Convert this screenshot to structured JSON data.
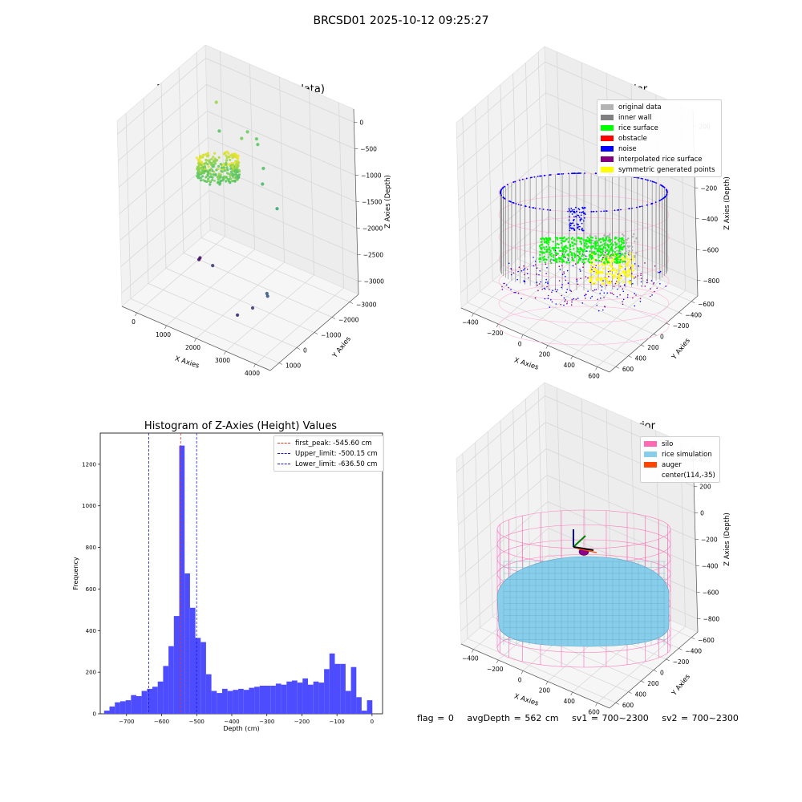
{
  "figure": {
    "title": "BRCSD01 2025-10-12 09:25:27",
    "status": {
      "flag": "flag = 0",
      "avg_depth": "avgDepth = 562 cm",
      "sv1": "sv1 = 700~2300",
      "sv2": "sv2 = 700~2300"
    }
  },
  "chart_data": [
    {
      "type": "scatter",
      "title": "3D Plot of Silo Interior(row data)",
      "xlabel": "X Axies",
      "ylabel": "Y Axies",
      "zlabel": "Z Axies (Depth)",
      "x_ticks": [
        "0",
        "1000",
        "2000",
        "3000",
        "4000"
      ],
      "y_ticks": [
        "1000",
        "0",
        "−1000",
        "−2000",
        "−3000"
      ],
      "z_ticks": [
        "0",
        "−500",
        "−1000",
        "−1500",
        "−2000",
        "−2500",
        "−3000"
      ],
      "colormap": "viridis",
      "outlier_points": [
        {
          "x": 500,
          "y": 400,
          "z": -350
        },
        {
          "x": 1600,
          "y": 300,
          "z": -650
        },
        {
          "x": 1900,
          "y": 300,
          "z": -720
        },
        {
          "x": 2000,
          "y": 200,
          "z": -780
        },
        {
          "x": 1700,
          "y": -200,
          "z": -600
        },
        {
          "x": 2600,
          "y": -500,
          "z": -900
        },
        {
          "x": 2800,
          "y": -900,
          "z": -1050
        },
        {
          "x": 3400,
          "y": -1100,
          "z": -1350
        },
        {
          "x": 700,
          "y": 200,
          "z": -850
        },
        {
          "x": 3900,
          "y": -2600,
          "z": -2550
        },
        {
          "x": 3800,
          "y": -2400,
          "z": -2700
        },
        {
          "x": 3400,
          "y": -2600,
          "z": -3000
        },
        {
          "x": 3000,
          "y": -2800,
          "z": -3200
        },
        {
          "x": 1400,
          "y": -1500,
          "z": -3000
        },
        {
          "x": 300,
          "y": -400,
          "z": -3500
        },
        {
          "x": 200,
          "y": -300,
          "z": -3600
        }
      ]
    },
    {
      "type": "scatter",
      "title": "3D classify of Silo Interior",
      "xlabel": "X Axies",
      "ylabel": "Y Axies",
      "zlabel": "Z Axies (Depth)",
      "x_ticks": [
        "−400",
        "−200",
        "0",
        "200",
        "400",
        "600"
      ],
      "y_ticks": [
        "600",
        "400",
        "200",
        "0",
        "−200",
        "−400",
        "−600"
      ],
      "z_ticks": [
        "200",
        "0",
        "−200",
        "−400",
        "−600",
        "−800"
      ],
      "legend": [
        {
          "label": "original data",
          "color": "#b3b3b3"
        },
        {
          "label": "inner wall",
          "color": "#808080"
        },
        {
          "label": "rice surface",
          "color": "#00ff00"
        },
        {
          "label": "obstacle",
          "color": "#ff0000"
        },
        {
          "label": "noise",
          "color": "#0000ff"
        },
        {
          "label": "interpolated rice surface",
          "color": "#800080"
        },
        {
          "label": "symmetric generated points",
          "color": "#ffff00"
        }
      ]
    },
    {
      "type": "bar",
      "title": "Histogram of Z-Axies (Height) Values",
      "xlabel": "Depth (cm)",
      "ylabel": "Frequency",
      "xlim": [
        -775,
        30
      ],
      "ylim": [
        0,
        1350
      ],
      "x_ticks": [
        -700,
        -600,
        -500,
        -400,
        -300,
        -200,
        -100,
        0
      ],
      "x_tick_labels": [
        "−700",
        "−600",
        "−500",
        "−400",
        "−300",
        "−200",
        "−100",
        "0"
      ],
      "y_ticks": [
        0,
        200,
        400,
        600,
        800,
        1000,
        1200
      ],
      "y_tick_labels": [
        "0",
        "200",
        "400",
        "600",
        "800",
        "1000",
        "1200"
      ],
      "bin_start": -764,
      "bin_width": 15.3,
      "values": [
        15,
        35,
        55,
        60,
        65,
        90,
        85,
        110,
        120,
        130,
        155,
        230,
        325,
        470,
        1290,
        675,
        510,
        365,
        345,
        190,
        110,
        100,
        120,
        110,
        115,
        120,
        115,
        125,
        130,
        135,
        135,
        135,
        145,
        140,
        155,
        160,
        150,
        170,
        140,
        155,
        150,
        215,
        290,
        240,
        240,
        110,
        225,
        80,
        15,
        65
      ],
      "color": "#4d4dff",
      "vlines": [
        {
          "x": -545.6,
          "color": "#e03a2a",
          "label": "first_peak: -545.60 cm"
        },
        {
          "x": -500.15,
          "color": "#1a1acc",
          "label": "Upper_limit: -500.15 cm"
        },
        {
          "x": -636.5,
          "color": "#1a1acc",
          "label": "Lower_limit: -636.50 cm"
        }
      ]
    },
    {
      "type": "surface",
      "title": "3D simulation of Silo Interior",
      "xlabel": "X Axies",
      "ylabel": "Y Axies",
      "zlabel": "Z Axies (Depth)",
      "x_ticks": [
        "−400",
        "−200",
        "0",
        "200",
        "400",
        "600"
      ],
      "y_ticks": [
        "600",
        "400",
        "200",
        "0",
        "−200",
        "−400",
        "−600"
      ],
      "z_ticks": [
        "400",
        "200",
        "0",
        "−200",
        "−400",
        "−600",
        "−800"
      ],
      "legend": [
        {
          "label": "silo",
          "color": "#ff69b4"
        },
        {
          "label": "rice simulation",
          "color": "#87ceeb"
        },
        {
          "label": "auger",
          "color": "#ff4500"
        },
        {
          "label": "center(114,-35)",
          "color": ""
        }
      ]
    }
  ]
}
